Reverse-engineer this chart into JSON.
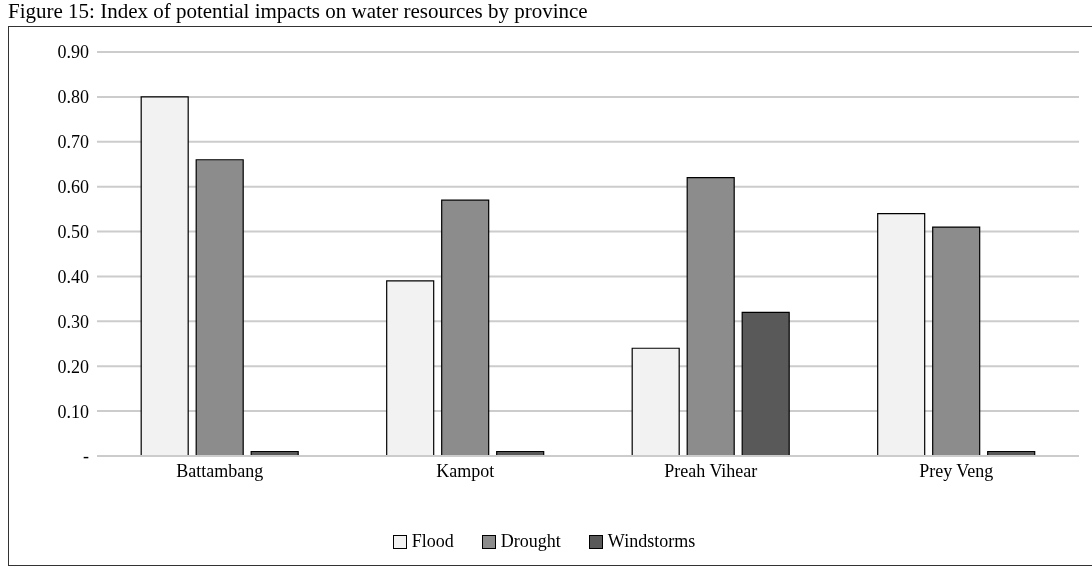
{
  "chart_data": {
    "type": "bar",
    "title": "Figure 15: Index of potential impacts on water resources by province",
    "categories": [
      "Battambang",
      "Kampot",
      "Preah Vihear",
      "Prey Veng"
    ],
    "series": [
      {
        "name": "Flood",
        "color": "#f2f2f2",
        "values": [
          0.8,
          0.39,
          0.24,
          0.54
        ]
      },
      {
        "name": "Drought",
        "color": "#8c8c8c",
        "values": [
          0.66,
          0.57,
          0.62,
          0.51
        ]
      },
      {
        "name": "Windstorms",
        "color": "#595959",
        "values": [
          0.01,
          0.01,
          0.32,
          0.01
        ]
      }
    ],
    "ylim": [
      0,
      0.9
    ],
    "yticks": [
      {
        "value": 0,
        "label": "-"
      },
      {
        "value": 0.1,
        "label": "0.10"
      },
      {
        "value": 0.2,
        "label": "0.20"
      },
      {
        "value": 0.3,
        "label": "0.30"
      },
      {
        "value": 0.4,
        "label": "0.40"
      },
      {
        "value": 0.5,
        "label": "0.50"
      },
      {
        "value": 0.6,
        "label": "0.60"
      },
      {
        "value": 0.7,
        "label": "0.70"
      },
      {
        "value": 0.8,
        "label": "0.80"
      },
      {
        "value": 0.9,
        "label": "0.90"
      }
    ],
    "grid": "y",
    "legend": "bottom"
  }
}
